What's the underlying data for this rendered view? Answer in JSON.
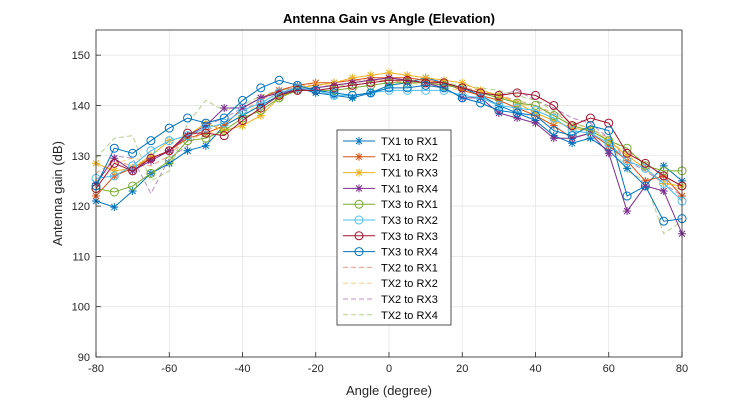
{
  "chart_data": {
    "type": "line",
    "title": "Antenna Gain vs Angle (Elevation)",
    "xlabel": "Angle (degree)",
    "ylabel": "Antenna gain (dB)",
    "xlim": [
      -80,
      80
    ],
    "ylim": [
      90,
      155
    ],
    "xticks": [
      -80,
      -60,
      -40,
      -20,
      0,
      20,
      40,
      60,
      80
    ],
    "yticks": [
      90,
      100,
      110,
      120,
      130,
      140,
      150
    ],
    "grid": true,
    "legend_position": "center",
    "x": [
      -80,
      -75,
      -70,
      -65,
      -60,
      -55,
      -50,
      -45,
      -40,
      -35,
      -30,
      -25,
      -20,
      -15,
      -10,
      -5,
      0,
      5,
      10,
      15,
      20,
      25,
      30,
      35,
      40,
      45,
      50,
      55,
      60,
      65,
      70,
      75,
      80
    ],
    "series": [
      {
        "name": "TX1 to RX1",
        "color": "#0072BD",
        "marker": "asterisk",
        "style": "solid",
        "values": [
          121,
          119.8,
          123,
          126.5,
          128.5,
          131,
          132,
          136,
          138,
          140,
          142,
          143.5,
          142.5,
          142,
          141.5,
          142.5,
          144,
          144.5,
          145.5,
          144.5,
          143.5,
          142,
          140,
          138.5,
          137,
          134,
          132.5,
          133.5,
          131,
          127.5,
          124,
          128,
          125
        ]
      },
      {
        "name": "TX1 to RX2",
        "color": "#D95319",
        "marker": "asterisk",
        "style": "solid",
        "values": [
          122,
          126,
          127.5,
          129.5,
          131,
          133.5,
          134.5,
          136,
          139.5,
          141.5,
          143,
          144,
          144.5,
          144.5,
          145,
          145.5,
          145.5,
          145.5,
          145,
          144.5,
          143,
          142,
          141,
          139.5,
          138,
          136,
          133.5,
          134.5,
          132,
          129,
          125,
          126,
          122
        ]
      },
      {
        "name": "TX1 to RX3",
        "color": "#EDB120",
        "marker": "asterisk",
        "style": "solid",
        "values": [
          128.5,
          127,
          127.5,
          130,
          133,
          134,
          136.5,
          135,
          136,
          138,
          141.5,
          143.5,
          144,
          144.5,
          145.5,
          146,
          146.5,
          146,
          145.5,
          145,
          144.5,
          143,
          142,
          140.5,
          138.5,
          137,
          135.5,
          135,
          133,
          130,
          127.5,
          124.5,
          124
        ]
      },
      {
        "name": "TX1 to RX4",
        "color": "#7E2F8E",
        "marker": "asterisk",
        "style": "solid",
        "values": [
          124.5,
          129.5,
          127,
          129,
          131,
          134,
          136,
          139.5,
          139.5,
          141.5,
          142.5,
          143,
          143.5,
          144,
          144.5,
          145,
          145.5,
          145,
          144.5,
          143.5,
          141.5,
          141.5,
          138.5,
          137.5,
          136.5,
          133.5,
          133.5,
          134.5,
          130.5,
          119,
          124,
          123,
          114.5
        ]
      },
      {
        "name": "TX3 to RX1",
        "color": "#77AC30",
        "marker": "circle",
        "style": "solid",
        "values": [
          123.5,
          122.8,
          124,
          126.5,
          129,
          133,
          133.5,
          135,
          137.5,
          139,
          141.5,
          143,
          143,
          143,
          143.5,
          144,
          144.5,
          144.5,
          144.5,
          144,
          143.5,
          142.5,
          141.5,
          140.5,
          140,
          138,
          136,
          135,
          133,
          131.5,
          128,
          127,
          127
        ]
      },
      {
        "name": "TX3 to RX2",
        "color": "#4DBEEE",
        "marker": "circle",
        "style": "solid",
        "values": [
          125.5,
          126,
          128,
          131,
          133,
          134,
          135.5,
          136.5,
          139,
          140.5,
          142.5,
          143.5,
          143,
          142,
          142,
          142.5,
          143,
          143,
          143,
          143,
          142,
          141.5,
          140,
          139.5,
          139,
          137.5,
          135,
          134.5,
          132.5,
          129,
          127.5,
          124.5,
          121
        ]
      },
      {
        "name": "TX3 to RX3",
        "color": "#A2142F",
        "marker": "circle",
        "style": "solid",
        "values": [
          123.5,
          128.5,
          127,
          129.5,
          131,
          134.5,
          134.5,
          134,
          137,
          139.5,
          142,
          143,
          143,
          143.5,
          144,
          144.5,
          145,
          145,
          144.5,
          144.5,
          143.5,
          142.5,
          142,
          142.5,
          142,
          140,
          136,
          137.5,
          136.5,
          130.5,
          128.5,
          126,
          124
        ]
      },
      {
        "name": "TX3 to RX4",
        "color": "#0072BD",
        "marker": "circle",
        "style": "solid",
        "values": [
          124,
          131.5,
          130.5,
          133,
          135.5,
          137.5,
          136.5,
          137.5,
          141,
          143.5,
          145,
          144,
          143,
          142.5,
          142,
          142.5,
          143.5,
          143.5,
          144,
          143.5,
          141.5,
          140.5,
          139,
          138.5,
          138,
          135,
          134,
          136,
          135,
          122,
          124,
          117,
          117.5
        ]
      },
      {
        "name": "TX2 to RX1",
        "color": "#D95319",
        "marker": "none",
        "style": "dashed",
        "values": [
          126.5,
          129,
          128,
          128,
          130,
          134,
          135,
          136.5,
          139,
          141,
          143,
          144,
          144,
          144.5,
          145,
          145,
          145,
          144.5,
          144.5,
          144,
          143.5,
          143,
          142,
          141,
          140,
          138.5,
          136.5,
          135.5,
          133.5,
          131,
          128.5,
          126,
          124
        ]
      },
      {
        "name": "TX2 to RX2",
        "color": "#EDB120",
        "marker": "none",
        "style": "dashed",
        "values": [
          125,
          128.5,
          129.5,
          129,
          131,
          133.5,
          134,
          136,
          138,
          140.5,
          142.5,
          143.5,
          144,
          144,
          144.5,
          145,
          145,
          144.5,
          144,
          143.5,
          143,
          142.5,
          141.5,
          140.5,
          139.5,
          138,
          136,
          135,
          133,
          130.5,
          127,
          125,
          123
        ]
      },
      {
        "name": "TX2 to RX3",
        "color": "#7E2F8E",
        "marker": "none",
        "style": "dashed",
        "values": [
          124,
          130,
          129.5,
          122.5,
          129.5,
          132,
          136,
          137.5,
          139.5,
          141.5,
          143,
          143.5,
          143.5,
          144,
          144.5,
          145,
          145.5,
          145,
          144.5,
          144,
          143.5,
          142.5,
          142,
          143,
          141,
          139.5,
          137.5,
          136.5,
          133.5,
          129,
          127,
          124.5,
          122
        ]
      },
      {
        "name": "TX2 to RX4",
        "color": "#77AC30",
        "marker": "none",
        "style": "dashed",
        "values": [
          129.5,
          133.5,
          134,
          125,
          127,
          136.5,
          141,
          139,
          140,
          142,
          143,
          143.5,
          143.5,
          144,
          144,
          144.5,
          145,
          145,
          145,
          144.5,
          144,
          143.5,
          143,
          142,
          141,
          139,
          136.5,
          135.5,
          133,
          127,
          125,
          114.5,
          117
        ]
      }
    ]
  }
}
